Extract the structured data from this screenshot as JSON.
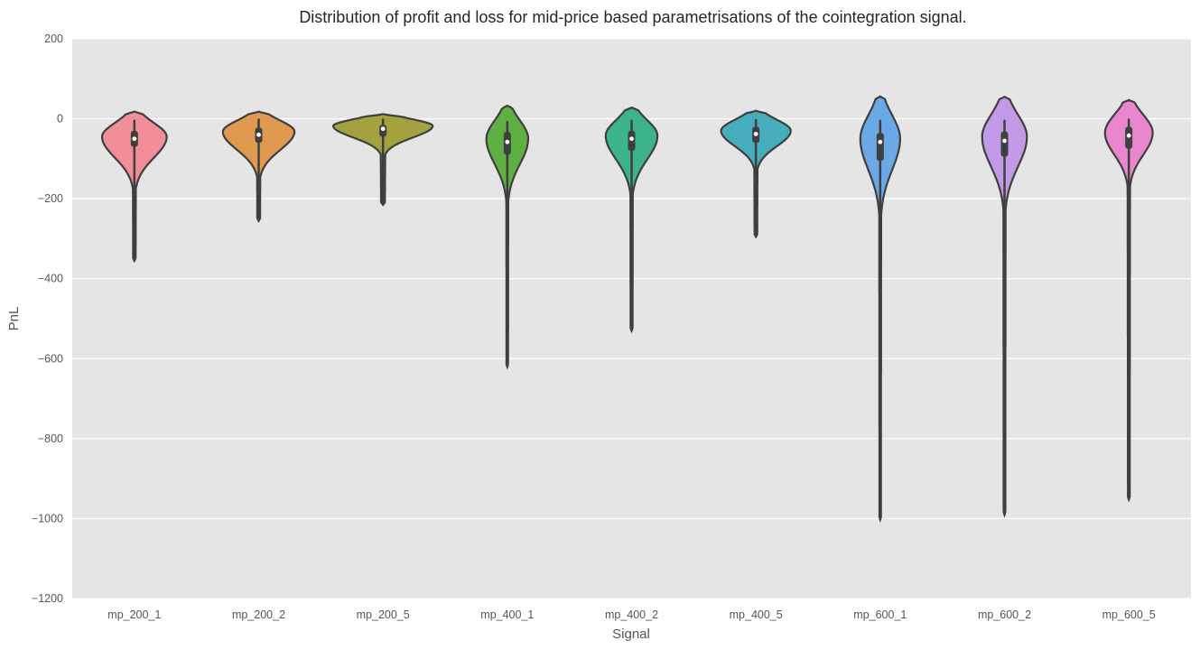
{
  "chart_data": {
    "type": "violin",
    "title": "Distribution of profit and loss for mid-price based parametrisations of the cointegration signal.",
    "xlabel": "Signal",
    "ylabel": "PnL",
    "ylim": [
      -1200,
      200
    ],
    "yticks": [
      200,
      0,
      -200,
      -400,
      -600,
      -800,
      -1000,
      -1200
    ],
    "ytick_labels": [
      "200",
      "0",
      "−200",
      "−400",
      "−600",
      "−800",
      "−1000",
      "−1200"
    ],
    "grid": true,
    "background": "#e5e5e5",
    "categories": [
      "mp_200_1",
      "mp_200_2",
      "mp_200_5",
      "mp_400_1",
      "mp_400_2",
      "mp_400_5",
      "mp_600_1",
      "mp_600_2",
      "mp_600_5"
    ],
    "colors": [
      "#f28e9a",
      "#df9a4f",
      "#a4a23f",
      "#5fb043",
      "#3cb28d",
      "#45adbb",
      "#6aa9e6",
      "#c39ae8",
      "#ea86cd"
    ],
    "violins": [
      {
        "name": "mp_200_1",
        "min": -355,
        "max": 18,
        "q1": -70,
        "median": -50,
        "q3": -30,
        "whisker_low": -140,
        "whisker_high": -5,
        "mode": -45,
        "mode_width": 0.65
      },
      {
        "name": "mp_200_2",
        "min": -255,
        "max": 18,
        "q1": -60,
        "median": -40,
        "q3": -22,
        "whisker_low": -115,
        "whisker_high": -2,
        "mode": -32,
        "mode_width": 0.72
      },
      {
        "name": "mp_200_5",
        "min": -215,
        "max": 12,
        "q1": -45,
        "median": -25,
        "q3": -15,
        "whisker_low": -70,
        "whisker_high": -2,
        "mode": -18,
        "mode_width": 1.0
      },
      {
        "name": "mp_400_1",
        "min": -620,
        "max": 33,
        "q1": -90,
        "median": -58,
        "q3": -33,
        "whisker_low": -165,
        "whisker_high": -8,
        "mode": -50,
        "mode_width": 0.42
      },
      {
        "name": "mp_400_2",
        "min": -530,
        "max": 28,
        "q1": -80,
        "median": -50,
        "q3": -30,
        "whisker_low": -150,
        "whisker_high": -5,
        "mode": -42,
        "mode_width": 0.52
      },
      {
        "name": "mp_400_5",
        "min": -295,
        "max": 20,
        "q1": -60,
        "median": -38,
        "q3": -20,
        "whisker_low": -100,
        "whisker_high": -3,
        "mode": -30,
        "mode_width": 0.7
      },
      {
        "name": "mp_600_1",
        "min": -1002,
        "max": 56,
        "q1": -105,
        "median": -58,
        "q3": -35,
        "whisker_low": -190,
        "whisker_high": -5,
        "mode": -50,
        "mode_width": 0.4
      },
      {
        "name": "mp_600_2",
        "min": -990,
        "max": 55,
        "q1": -95,
        "median": -55,
        "q3": -32,
        "whisker_low": -180,
        "whisker_high": -5,
        "mode": -45,
        "mode_width": 0.45
      },
      {
        "name": "mp_600_5",
        "min": -952,
        "max": 47,
        "q1": -75,
        "median": -42,
        "q3": -20,
        "whisker_low": -135,
        "whisker_high": -2,
        "mode": -35,
        "mode_width": 0.48
      }
    ]
  }
}
